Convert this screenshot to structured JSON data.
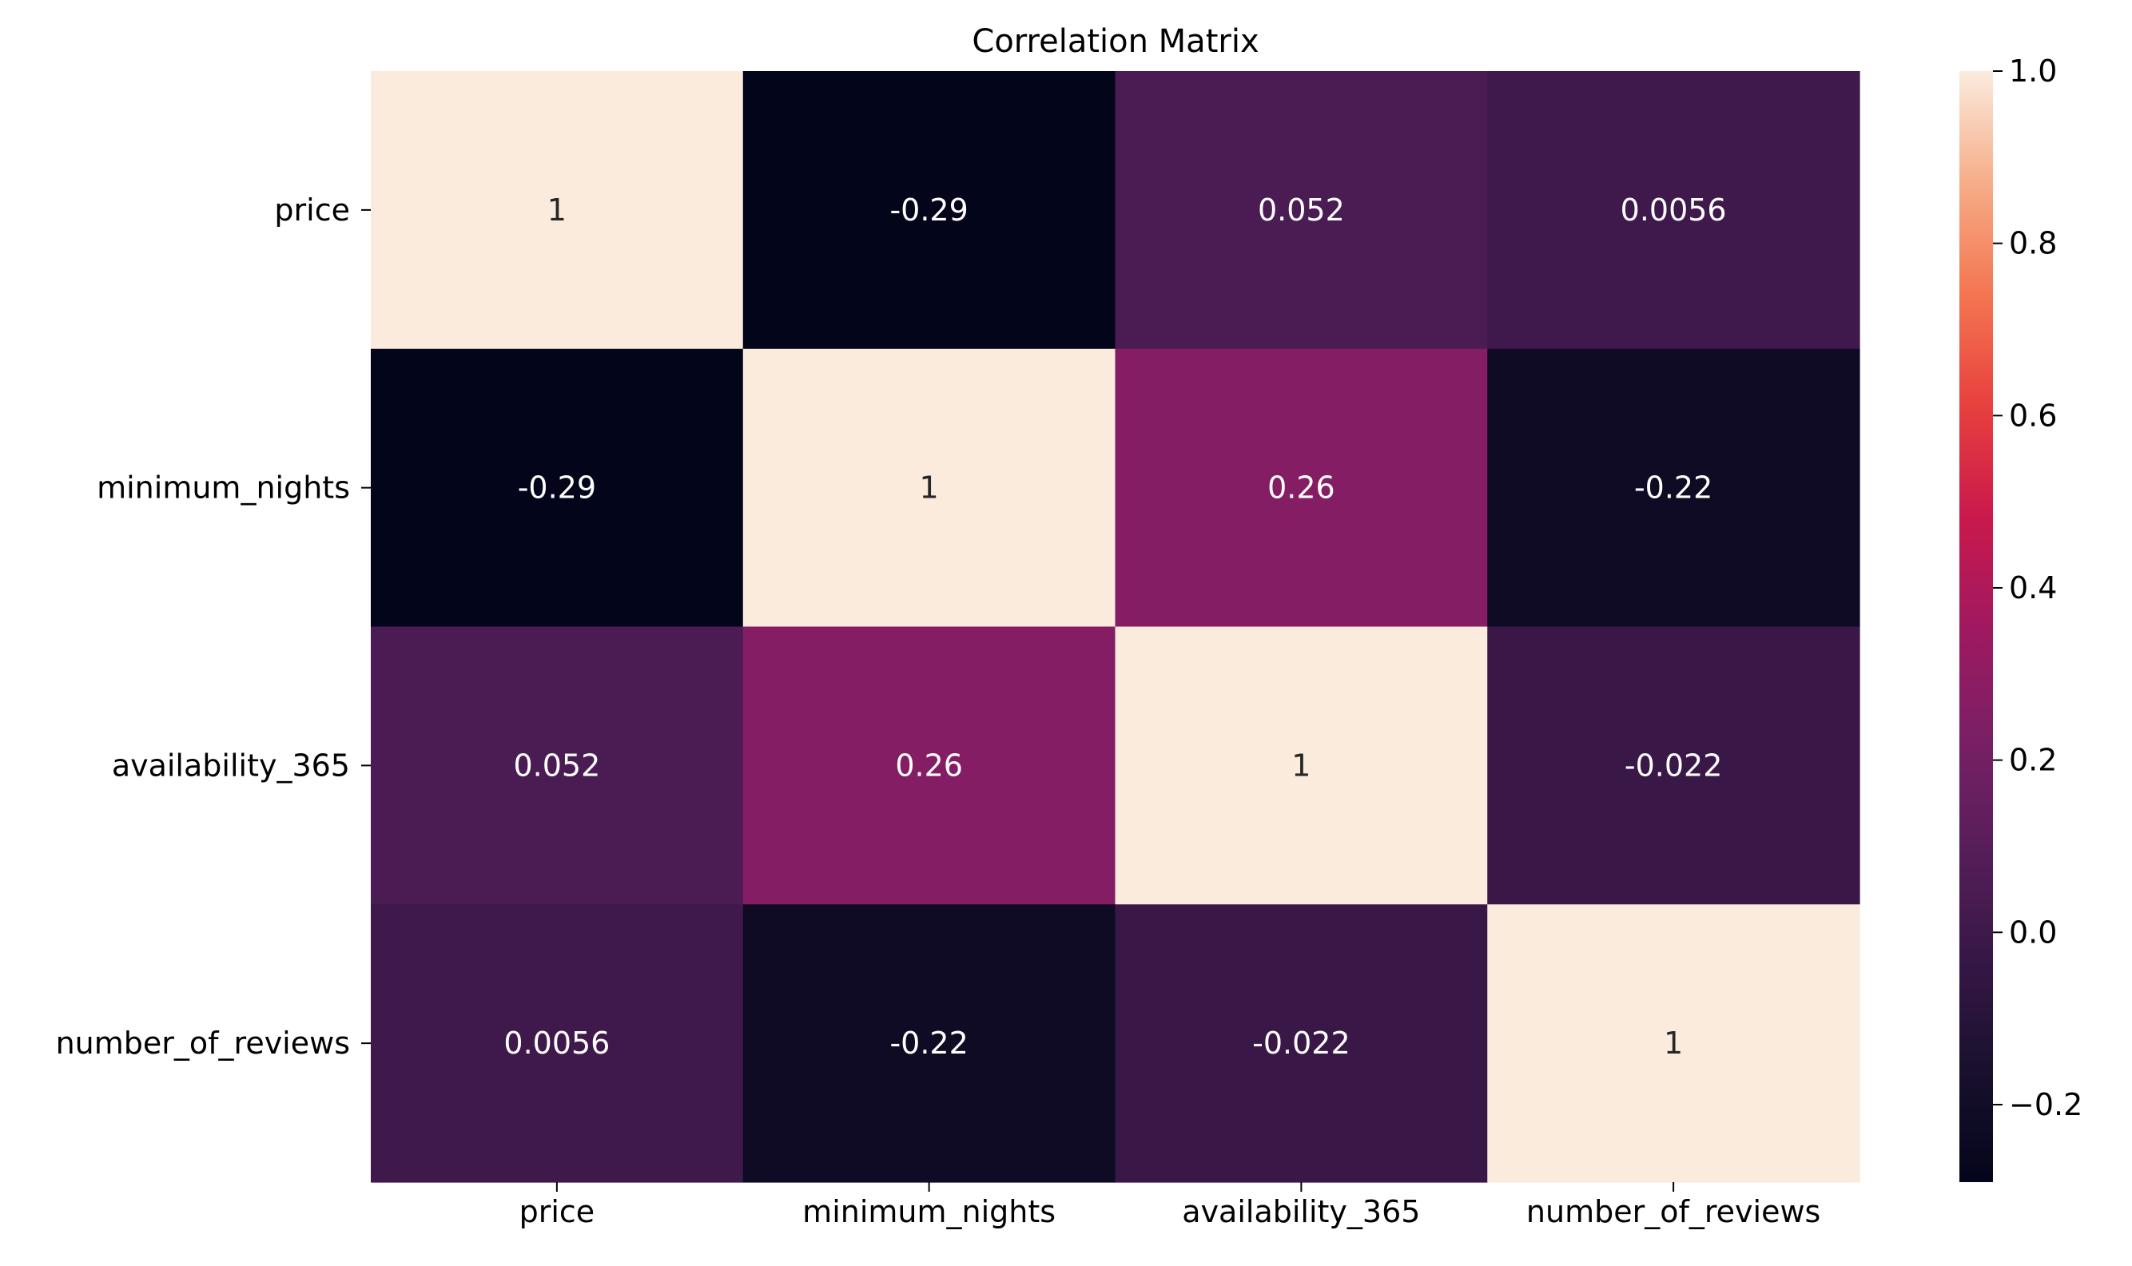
{
  "chart_data": {
    "type": "heatmap",
    "title": "Correlation Matrix",
    "xlabel": "",
    "ylabel": "",
    "x_categories": [
      "price",
      "minimum_nights",
      "availability_365",
      "number_of_reviews"
    ],
    "y_categories": [
      "price",
      "minimum_nights",
      "availability_365",
      "number_of_reviews"
    ],
    "values": [
      [
        1,
        -0.29,
        0.052,
        0.0056
      ],
      [
        -0.29,
        1,
        0.26,
        -0.22
      ],
      [
        0.052,
        0.26,
        1,
        -0.022
      ],
      [
        0.0056,
        -0.22,
        -0.022,
        1
      ]
    ],
    "cell_labels": [
      [
        "1",
        "-0.29",
        "0.052",
        "0.0056"
      ],
      [
        "-0.29",
        "1",
        "0.26",
        "-0.22"
      ],
      [
        "0.052",
        "0.26",
        "1",
        "-0.022"
      ],
      [
        "0.0056",
        "-0.22",
        "-0.022",
        "1"
      ]
    ],
    "colormap": "rocket",
    "vmin": -0.29,
    "vmax": 1.0,
    "colorbar": {
      "ticks": [
        -0.2,
        0.0,
        0.2,
        0.4,
        0.6,
        0.8,
        1.0
      ],
      "tick_labels": [
        "−0.2",
        "0.0",
        "0.2",
        "0.4",
        "0.6",
        "0.8",
        "1.0"
      ]
    },
    "legend": "colorbar-right",
    "grid": false
  }
}
